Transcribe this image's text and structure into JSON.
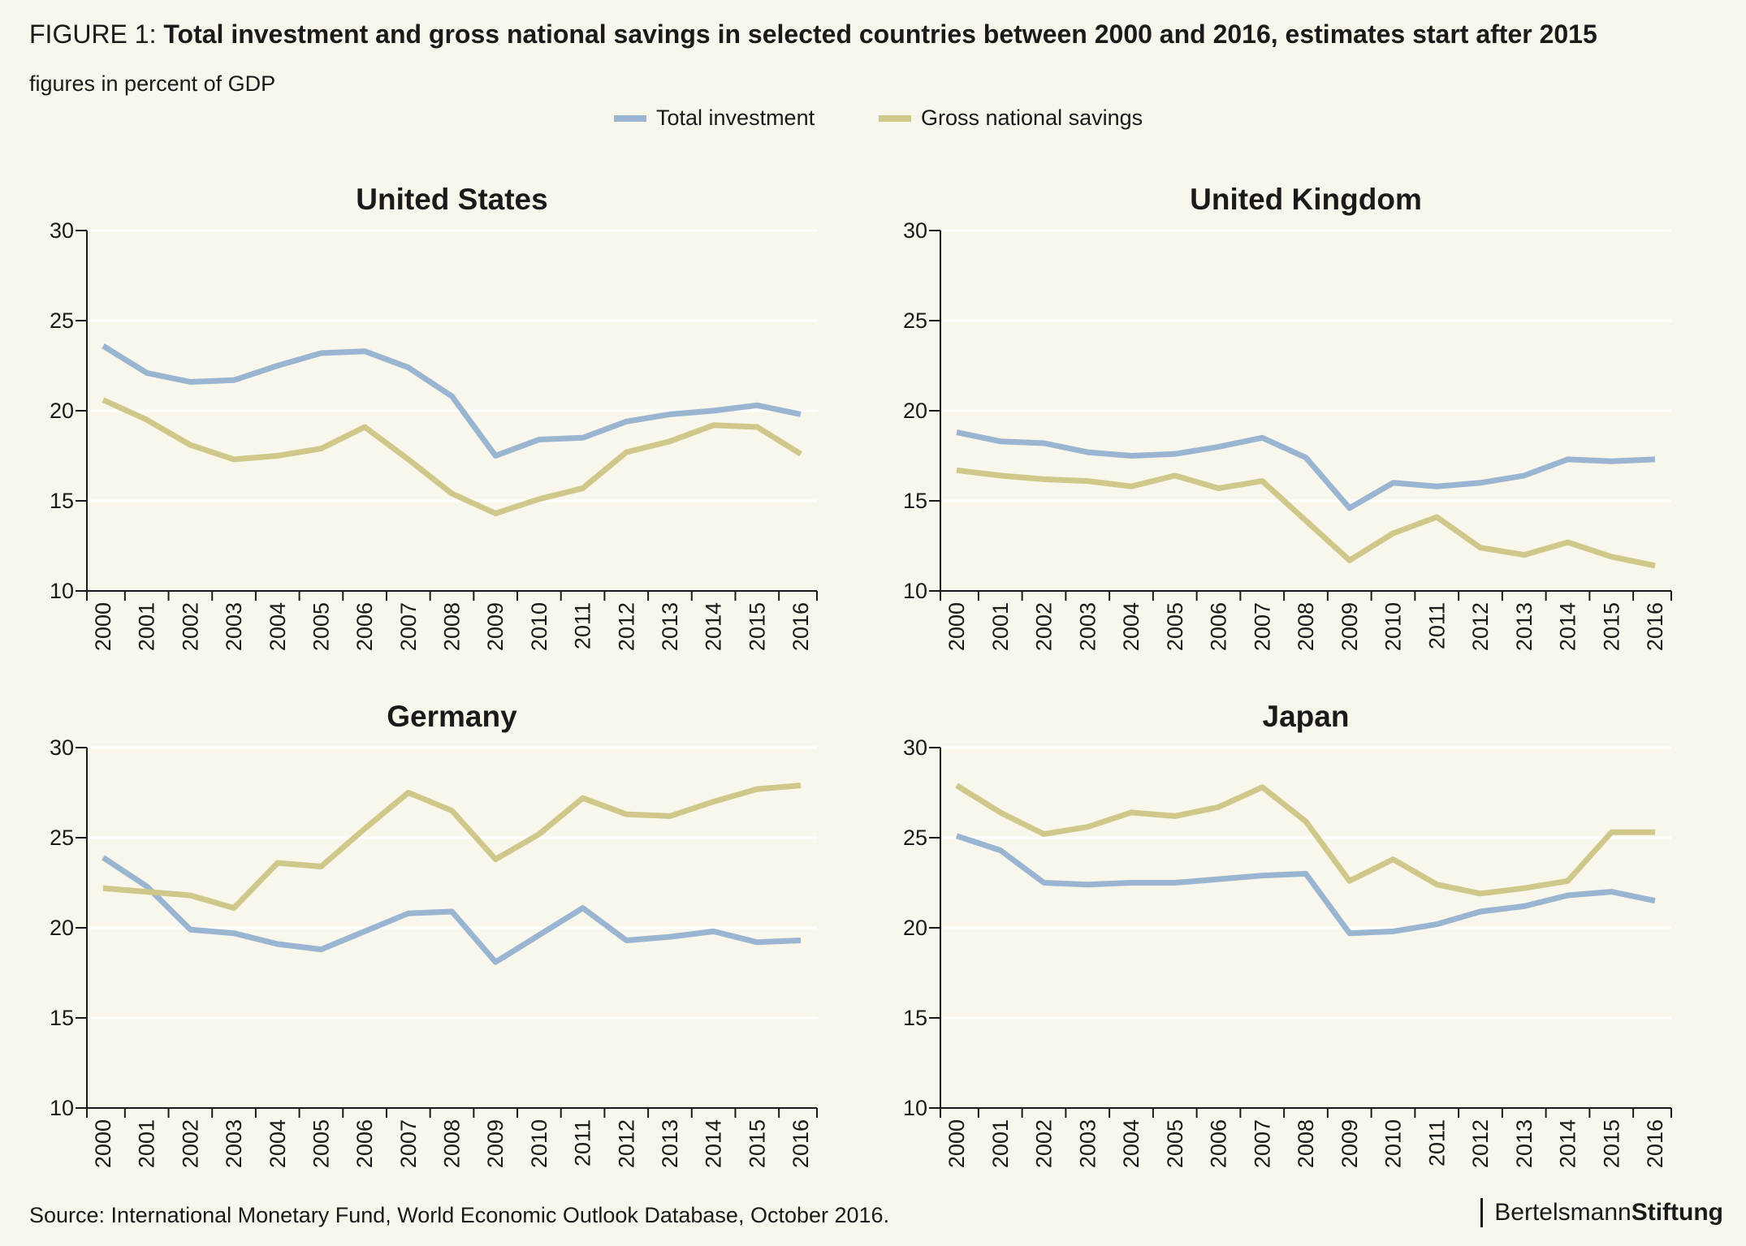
{
  "header": {
    "figure_prefix": "FIGURE 1:",
    "title": "Total investment and gross national savings in selected countries between 2000 and 2016, estimates start after 2015",
    "subtitle": "figures in percent of GDP"
  },
  "legend": [
    {
      "label": "Total investment",
      "color": "#9ab5d2"
    },
    {
      "label": "Gross national savings",
      "color": "#cfc88a"
    }
  ],
  "footer": {
    "source": "Source: International Monetary Fund, World Economic Outlook Database, October 2016.",
    "brand_regular": "Bertelsmann",
    "brand_bold": "Stiftung"
  },
  "chart_data": [
    {
      "type": "line",
      "title": "United States",
      "x": [
        "2000",
        "2001",
        "2002",
        "2003",
        "2004",
        "2005",
        "2006",
        "2007",
        "2008",
        "2009",
        "2010",
        "2011",
        "2012",
        "2013",
        "2014",
        "2015",
        "2016"
      ],
      "ylim": [
        10,
        30
      ],
      "yticks": [
        10,
        15,
        20,
        25,
        30
      ],
      "series": [
        {
          "name": "Total investment",
          "color": "#9ab5d2",
          "values": [
            23.6,
            22.1,
            21.6,
            21.7,
            22.5,
            23.2,
            23.3,
            22.4,
            20.8,
            17.5,
            18.4,
            18.5,
            19.4,
            19.8,
            20.0,
            20.3,
            19.8
          ]
        },
        {
          "name": "Gross national savings",
          "color": "#cfc88a",
          "values": [
            20.6,
            19.5,
            18.1,
            17.3,
            17.5,
            17.9,
            19.1,
            17.3,
            15.4,
            14.3,
            15.1,
            15.7,
            17.7,
            18.3,
            19.2,
            19.1,
            17.6
          ]
        }
      ]
    },
    {
      "type": "line",
      "title": "United Kingdom",
      "x": [
        "2000",
        "2001",
        "2002",
        "2003",
        "2004",
        "2005",
        "2006",
        "2007",
        "2008",
        "2009",
        "2010",
        "2011",
        "2012",
        "2013",
        "2014",
        "2015",
        "2016"
      ],
      "ylim": [
        10,
        30
      ],
      "yticks": [
        10,
        15,
        20,
        25,
        30
      ],
      "series": [
        {
          "name": "Total investment",
          "color": "#9ab5d2",
          "values": [
            18.8,
            18.3,
            18.2,
            17.7,
            17.5,
            17.6,
            18.0,
            18.5,
            17.4,
            14.6,
            16.0,
            15.8,
            16.0,
            16.4,
            17.3,
            17.2,
            17.3
          ]
        },
        {
          "name": "Gross national savings",
          "color": "#cfc88a",
          "values": [
            16.7,
            16.4,
            16.2,
            16.1,
            15.8,
            16.4,
            15.7,
            16.1,
            13.9,
            11.7,
            13.2,
            14.1,
            12.4,
            12.0,
            12.7,
            11.9,
            11.4
          ]
        }
      ]
    },
    {
      "type": "line",
      "title": "Germany",
      "x": [
        "2000",
        "2001",
        "2002",
        "2003",
        "2004",
        "2005",
        "2006",
        "2007",
        "2008",
        "2009",
        "2010",
        "2011",
        "2012",
        "2013",
        "2014",
        "2015",
        "2016"
      ],
      "ylim": [
        10,
        30
      ],
      "yticks": [
        10,
        15,
        20,
        25,
        30
      ],
      "series": [
        {
          "name": "Total investment",
          "color": "#9ab5d2",
          "values": [
            23.9,
            22.3,
            19.9,
            19.7,
            19.1,
            18.8,
            19.8,
            20.8,
            20.9,
            18.1,
            19.6,
            21.1,
            19.3,
            19.5,
            19.8,
            19.2,
            19.3
          ]
        },
        {
          "name": "Gross national savings",
          "color": "#cfc88a",
          "values": [
            22.2,
            22.0,
            21.8,
            21.1,
            23.6,
            23.4,
            25.5,
            27.5,
            26.5,
            23.8,
            25.2,
            27.2,
            26.3,
            26.2,
            27.0,
            27.7,
            27.9
          ]
        }
      ]
    },
    {
      "type": "line",
      "title": "Japan",
      "x": [
        "2000",
        "2001",
        "2002",
        "2003",
        "2004",
        "2005",
        "2006",
        "2007",
        "2008",
        "2009",
        "2010",
        "2011",
        "2012",
        "2013",
        "2014",
        "2015",
        "2016"
      ],
      "ylim": [
        10,
        30
      ],
      "yticks": [
        10,
        15,
        20,
        25,
        30
      ],
      "series": [
        {
          "name": "Total investment",
          "color": "#9ab5d2",
          "values": [
            25.1,
            24.3,
            22.5,
            22.4,
            22.5,
            22.5,
            22.7,
            22.9,
            23.0,
            19.7,
            19.8,
            20.2,
            20.9,
            21.2,
            21.8,
            22.0,
            21.5
          ]
        },
        {
          "name": "Gross national savings",
          "color": "#cfc88a",
          "values": [
            27.9,
            26.4,
            25.2,
            25.6,
            26.4,
            26.2,
            26.7,
            27.8,
            25.9,
            22.6,
            23.8,
            22.4,
            21.9,
            22.2,
            22.6,
            25.3,
            25.3
          ]
        }
      ]
    }
  ]
}
